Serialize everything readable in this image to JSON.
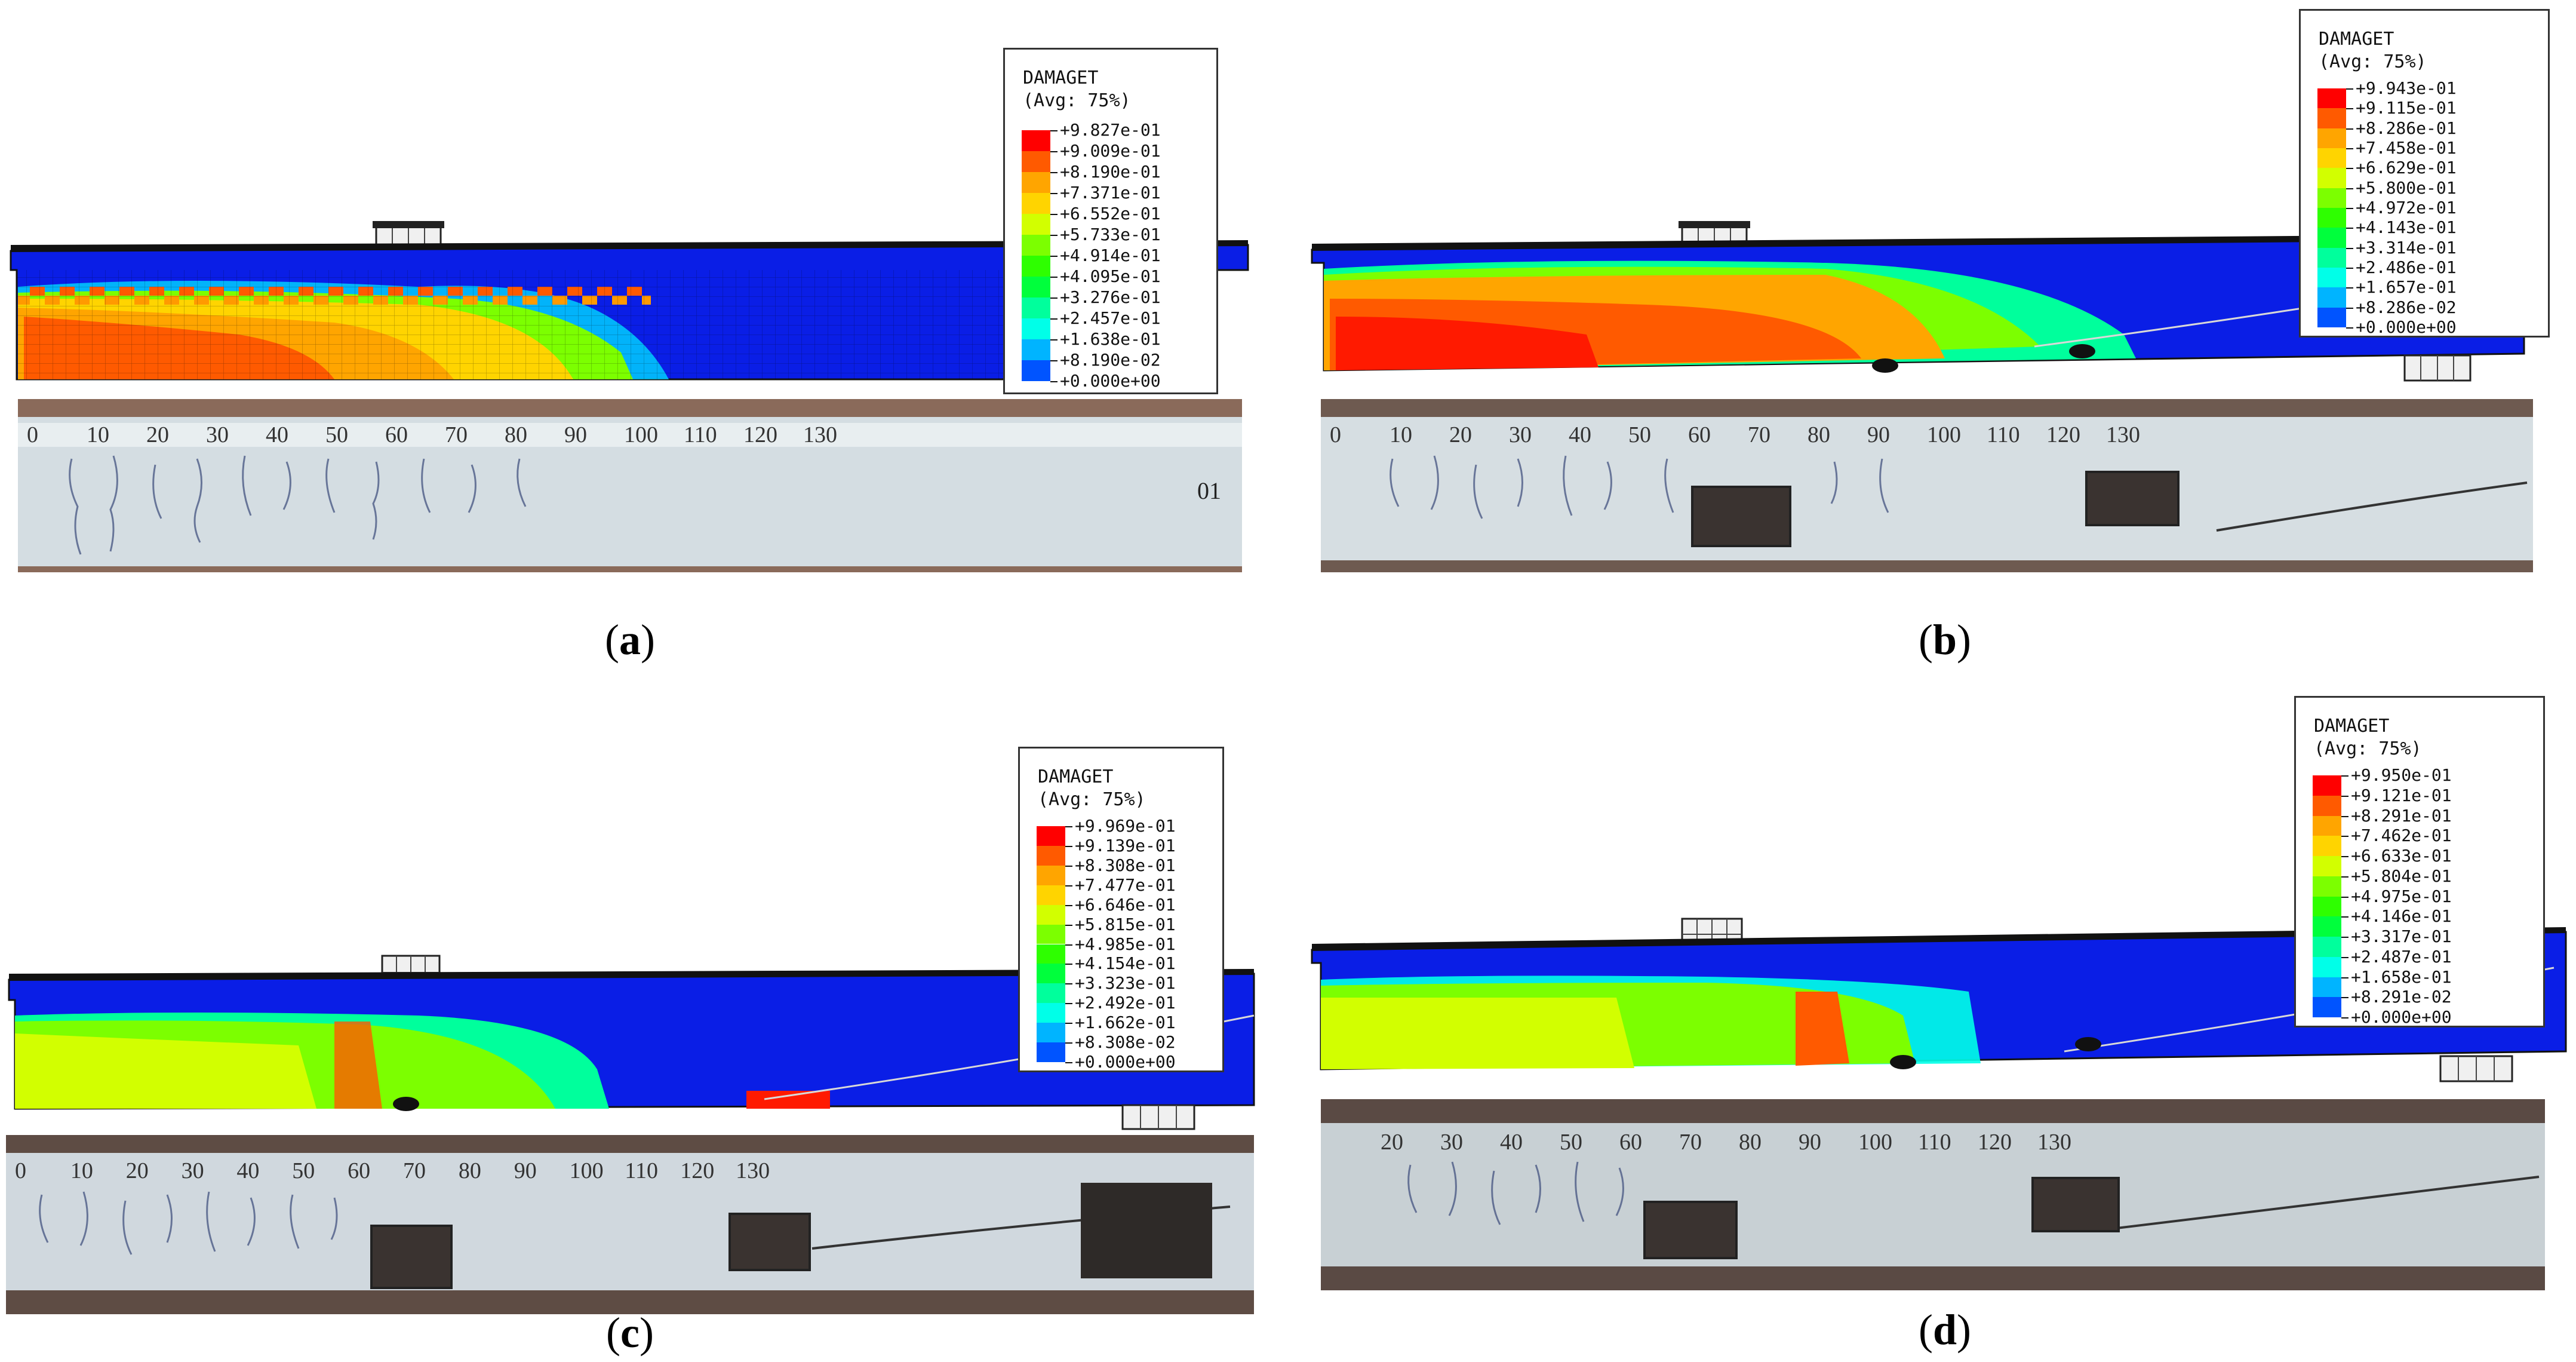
{
  "panels": [
    {
      "id": "a",
      "caption": "a",
      "legend": {
        "title": "DAMAGET",
        "subtitle": "(Avg: 75%)",
        "values": [
          "+9.827e-01",
          "+9.009e-01",
          "+8.190e-01",
          "+7.371e-01",
          "+6.552e-01",
          "+5.733e-01",
          "+4.914e-01",
          "+4.095e-01",
          "+3.276e-01",
          "+2.457e-01",
          "+1.638e-01",
          "+8.190e-02",
          "+0.000e+00"
        ]
      },
      "ruler": [
        "0",
        "10",
        "20",
        "30",
        "40",
        "50",
        "60",
        "70",
        "80",
        "90",
        "100",
        "110",
        "120",
        "130"
      ],
      "beam_label": "01"
    },
    {
      "id": "b",
      "caption": "b",
      "legend": {
        "title": "DAMAGET",
        "subtitle": "(Avg: 75%)",
        "values": [
          "+9.943e-01",
          "+9.115e-01",
          "+8.286e-01",
          "+7.458e-01",
          "+6.629e-01",
          "+5.800e-01",
          "+4.972e-01",
          "+4.143e-01",
          "+3.314e-01",
          "+2.486e-01",
          "+1.657e-01",
          "+8.286e-02",
          "+0.000e+00"
        ]
      },
      "ruler": [
        "0",
        "10",
        "20",
        "30",
        "40",
        "50",
        "60",
        "70",
        "80",
        "90",
        "100",
        "110",
        "120",
        "130"
      ]
    },
    {
      "id": "c",
      "caption": "c",
      "legend": {
        "title": "DAMAGET",
        "subtitle": "(Avg: 75%)",
        "values": [
          "+9.969e-01",
          "+9.139e-01",
          "+8.308e-01",
          "+7.477e-01",
          "+6.646e-01",
          "+5.815e-01",
          "+4.985e-01",
          "+4.154e-01",
          "+3.323e-01",
          "+2.492e-01",
          "+1.662e-01",
          "+8.308e-02",
          "+0.000e+00"
        ]
      },
      "ruler": [
        "0",
        "10",
        "20",
        "30",
        "40",
        "50",
        "60",
        "70",
        "80",
        "90",
        "100",
        "110",
        "120",
        "130"
      ]
    },
    {
      "id": "d",
      "caption": "d",
      "legend": {
        "title": "DAMAGET",
        "subtitle": "(Avg: 75%)",
        "values": [
          "+9.950e-01",
          "+9.121e-01",
          "+8.291e-01",
          "+7.462e-01",
          "+6.633e-01",
          "+5.804e-01",
          "+4.975e-01",
          "+4.146e-01",
          "+3.317e-01",
          "+2.487e-01",
          "+1.658e-01",
          "+8.291e-02",
          "+0.000e+00"
        ]
      },
      "ruler": [
        "20",
        "30",
        "40",
        "50",
        "60",
        "70",
        "80",
        "90",
        "100",
        "110",
        "120",
        "130"
      ]
    }
  ],
  "colors": {
    "contour_scale": [
      "#ff0000",
      "#ff5a00",
      "#ffa500",
      "#ffd400",
      "#d2ff00",
      "#7cff00",
      "#2eff00",
      "#00ff3c",
      "#00ff9c",
      "#00ffe8",
      "#00b4ff",
      "#0054ff",
      "#0000ff"
    ],
    "mesh_base": "#0a1ee6",
    "photo_beam": "#d4dde2",
    "photo_bg": "#6b5a52"
  }
}
